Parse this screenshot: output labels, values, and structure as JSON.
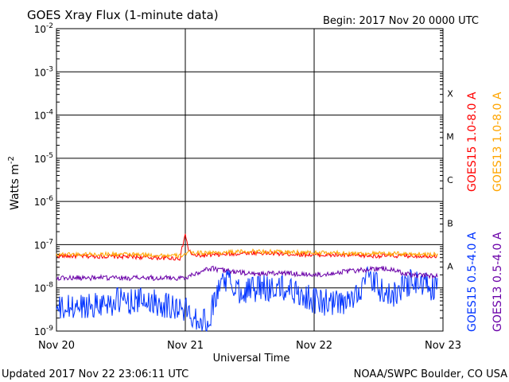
{
  "header": {
    "title": "GOES Xray Flux (1-minute data)",
    "begin": "Begin:  2017 Nov 20 0000 UTC"
  },
  "footer": {
    "updated": "Updated 2017 Nov 22 23:06:11 UTC",
    "credit": "NOAA/SWPC Boulder, CO USA"
  },
  "colors": {
    "goes15_long": "#ff0000",
    "goes13_long": "#ffa500",
    "goes15_short": "#0033ff",
    "goes13_short": "#6a00a8"
  },
  "chart_data": {
    "type": "line",
    "title": "GOES Xray Flux (1-minute data)",
    "xlabel": "Universal Time",
    "ylabel": "Watts m",
    "ylabel_superscript": "-2",
    "yscale": "log",
    "ylim": [
      1e-09,
      0.01
    ],
    "xlim": [
      "2017-11-20 00:00",
      "2017-11-23 00:00"
    ],
    "x_ticks": [
      "Nov 20",
      "Nov 21",
      "Nov 22",
      "Nov 23"
    ],
    "y_ticks": [
      {
        "base": "10",
        "exp": "-2"
      },
      {
        "base": "10",
        "exp": "-3"
      },
      {
        "base": "10",
        "exp": "-4"
      },
      {
        "base": "10",
        "exp": "-5"
      },
      {
        "base": "10",
        "exp": "-6"
      },
      {
        "base": "10",
        "exp": "-7"
      },
      {
        "base": "10",
        "exp": "-8"
      },
      {
        "base": "10",
        "exp": "-9"
      }
    ],
    "flare_classes": [
      "X",
      "M",
      "C",
      "B",
      "A"
    ],
    "grid": true,
    "legend_position": "right",
    "series": [
      {
        "name": "GOES15 1.0-8.0 A",
        "color": "#ff0000",
        "x": [
          "2017-11-20 00:00",
          "2017-11-20 12:00",
          "2017-11-20 23:00",
          "2017-11-21 00:00",
          "2017-11-21 00:30",
          "2017-11-21 01:30",
          "2017-11-21 06:00",
          "2017-11-21 12:00",
          "2017-11-22 00:00",
          "2017-11-22 12:00",
          "2017-11-22 23:00"
        ],
        "values": [
          5.5e-08,
          5.3e-08,
          4.8e-08,
          1.8e-07,
          8e-08,
          5.5e-08,
          5.8e-08,
          6.5e-08,
          5.8e-08,
          5.5e-08,
          5.5e-08
        ]
      },
      {
        "name": "GOES13 1.0-8.0 A",
        "color": "#ffa500",
        "x": [
          "2017-11-20 00:00",
          "2017-11-20 12:00",
          "2017-11-20 23:00",
          "2017-11-21 00:30",
          "2017-11-21 06:00",
          "2017-11-21 12:00",
          "2017-11-22 00:00",
          "2017-11-22 12:00",
          "2017-11-22 23:00"
        ],
        "values": [
          6e-08,
          6e-08,
          5.5e-08,
          6.5e-08,
          6.5e-08,
          7e-08,
          6.5e-08,
          6.2e-08,
          6e-08
        ]
      },
      {
        "name": "GOES15 0.5-4.0 A",
        "color": "#0033ff",
        "x": [
          "2017-11-20 00:00",
          "2017-11-20 06:00",
          "2017-11-20 12:00",
          "2017-11-20 18:00",
          "2017-11-21 00:00",
          "2017-11-21 04:00",
          "2017-11-21 07:00",
          "2017-11-21 10:00",
          "2017-11-21 15:00",
          "2017-11-21 20:00",
          "2017-11-22 00:00",
          "2017-11-22 06:00",
          "2017-11-22 10:00",
          "2017-11-22 14:00",
          "2017-11-22 18:00",
          "2017-11-22 23:00"
        ],
        "values": [
          3e-09,
          4e-09,
          5e-09,
          5e-09,
          3e-09,
          1.5e-09,
          1.8e-08,
          9e-09,
          1e-08,
          9e-09,
          5e-09,
          4e-09,
          1.7e-08,
          6e-09,
          1.4e-08,
          9e-09
        ]
      },
      {
        "name": "GOES13 0.5-4.0 A",
        "color": "#6a00a8",
        "x": [
          "2017-11-20 00:00",
          "2017-11-20 12:00",
          "2017-11-21 00:00",
          "2017-11-21 03:00",
          "2017-11-21 05:00",
          "2017-11-21 12:00",
          "2017-11-21 18:00",
          "2017-11-22 00:00",
          "2017-11-22 09:00",
          "2017-11-22 13:00",
          "2017-11-22 18:00",
          "2017-11-22 23:00"
        ],
        "values": [
          1.7e-08,
          1.7e-08,
          1.7e-08,
          2.5e-08,
          2.8e-08,
          2.1e-08,
          2.2e-08,
          2e-08,
          2.6e-08,
          2.8e-08,
          2e-08,
          1.9e-08
        ]
      }
    ]
  }
}
